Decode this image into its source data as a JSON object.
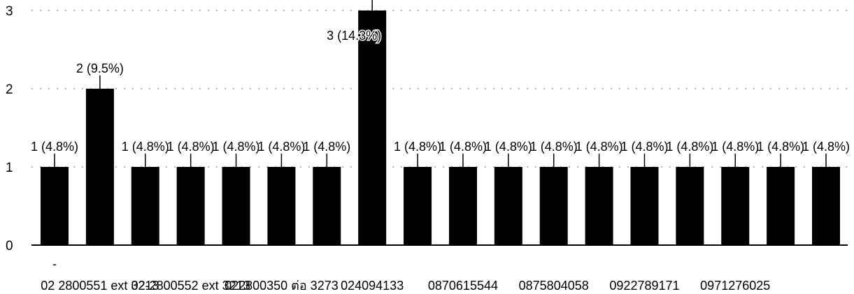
{
  "chart_data": {
    "type": "bar",
    "title": "",
    "xlabel": "",
    "ylabel": "",
    "ylim": [
      0,
      3
    ],
    "yticks": [
      "0",
      "1",
      "2",
      "3"
    ],
    "grid": true,
    "legend": "none",
    "bar_color": "#000000",
    "categories": [
      "-",
      "02 2800551 ext 3213",
      "",
      "02-2800552 ext 3213",
      "",
      "022800350 ต่อ 3273",
      "",
      "024094133",
      "",
      "0870615544",
      "",
      "0875804058",
      "",
      "0922789171",
      "",
      "0971276025",
      "",
      ""
    ],
    "values": [
      1,
      2,
      1,
      1,
      1,
      1,
      1,
      3,
      1,
      1,
      1,
      1,
      1,
      1,
      1,
      1,
      1,
      1
    ],
    "labels": [
      "1 (4.8%)",
      "2 (9.5%)",
      "1 (4.8%)",
      "1 (4.8%)",
      "1 (4.8%)",
      "1 (4.8%)",
      "1 (4.8%)",
      "3 (14.3%)",
      "1 (4.8%)",
      "1 (4.8%)",
      "1 (4.8%)",
      "1 (4.8%)",
      "1 (4.8%)",
      "1 (4.8%)",
      "1 (4.8%)",
      "1 (4.8%)",
      "1 (4.8%)",
      "1 (4.8%)"
    ]
  }
}
